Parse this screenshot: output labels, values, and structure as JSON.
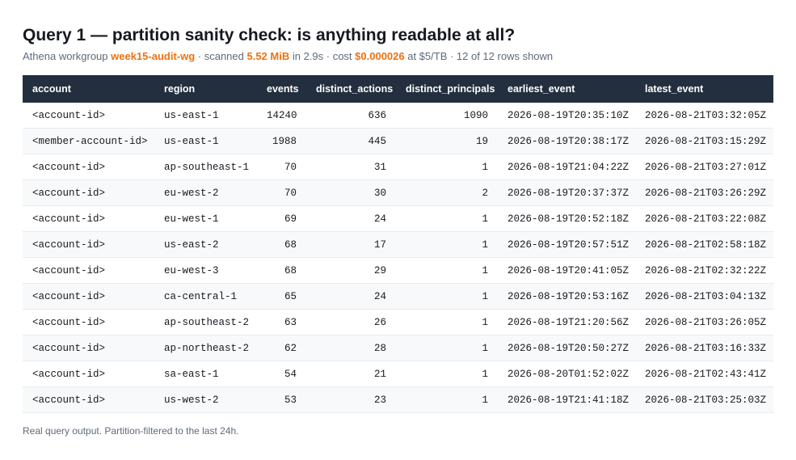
{
  "header": {
    "title": "Query 1 — partition sanity check: is anything readable at all?",
    "subtitle": [
      "Athena workgroup ",
      "week15-audit-wg",
      " · scanned ",
      "5.52 MiB",
      " in 2.9s · cost ",
      "$0.000026",
      " at $5/TB · 12 of 12 rows shown"
    ]
  },
  "table": {
    "columns": [
      "account",
      "region",
      "events",
      "distinct_actions",
      "distinct_principals",
      "earliest_event",
      "latest_event"
    ],
    "rows": [
      [
        "<account-id>",
        "us-east-1",
        14240,
        636,
        1090,
        "2026-08-19T20:35:10Z",
        "2026-08-21T03:32:05Z"
      ],
      [
        "<member-account-id>",
        "us-east-1",
        1988,
        445,
        19,
        "2026-08-19T20:38:17Z",
        "2026-08-21T03:15:29Z"
      ],
      [
        "<account-id>",
        "ap-southeast-1",
        70,
        31,
        1,
        "2026-08-19T21:04:22Z",
        "2026-08-21T03:27:01Z"
      ],
      [
        "<account-id>",
        "eu-west-2",
        70,
        30,
        2,
        "2026-08-19T20:37:37Z",
        "2026-08-21T03:26:29Z"
      ],
      [
        "<account-id>",
        "eu-west-1",
        69,
        24,
        1,
        "2026-08-19T20:52:18Z",
        "2026-08-21T03:22:08Z"
      ],
      [
        "<account-id>",
        "us-east-2",
        68,
        17,
        1,
        "2026-08-19T20:57:51Z",
        "2026-08-21T02:58:18Z"
      ],
      [
        "<account-id>",
        "eu-west-3",
        68,
        29,
        1,
        "2026-08-19T20:41:05Z",
        "2026-08-21T02:32:22Z"
      ],
      [
        "<account-id>",
        "ca-central-1",
        65,
        24,
        1,
        "2026-08-19T20:53:16Z",
        "2026-08-21T03:04:13Z"
      ],
      [
        "<account-id>",
        "ap-southeast-2",
        63,
        26,
        1,
        "2026-08-19T21:20:56Z",
        "2026-08-21T03:26:05Z"
      ],
      [
        "<account-id>",
        "ap-northeast-2",
        62,
        28,
        1,
        "2026-08-19T20:50:27Z",
        "2026-08-21T03:16:33Z"
      ],
      [
        "<account-id>",
        "sa-east-1",
        54,
        21,
        1,
        "2026-08-20T01:52:02Z",
        "2026-08-21T02:43:41Z"
      ],
      [
        "<account-id>",
        "us-west-2",
        53,
        23,
        1,
        "2026-08-19T21:41:18Z",
        "2026-08-21T03:25:03Z"
      ]
    ]
  },
  "footer": "Real query output. Partition-filtered to the last 24h."
}
